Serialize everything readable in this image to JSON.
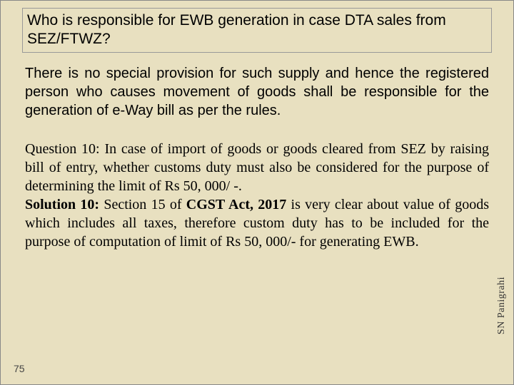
{
  "colors": {
    "background": "#e8e0c0",
    "text": "#000000",
    "border": "#999999",
    "page_num": "#444444",
    "author": "#333333"
  },
  "typography": {
    "title_fontsize": 21,
    "body_fontsize": 20,
    "pagenum_fontsize": 14,
    "author_fontsize": 14,
    "title_font": "Arial",
    "answer1_font": "Arial",
    "qa2_font": "Georgia"
  },
  "title": "Who is responsible for EWB generation in case DTA sales from SEZ/FTWZ?",
  "answer1": "There is no special provision for such supply and hence the registered person who causes movement of goods shall be responsible for the generation of e-Way bill as per the rules.",
  "qa2": {
    "question": "Question 10: In case of import of goods or goods cleared from SEZ by raising bill of entry, whether customs duty must also be considered for the purpose of determining the limit of Rs 50, 000/ -.",
    "solution_label": "Solution 10:",
    "solution_mid": " Section 15 of ",
    "solution_act": "CGST Act, 2017",
    "solution_tail": " is very clear about value of goods which includes all taxes, therefore custom duty has to be included for the purpose of computation of limit of Rs 50, 000/- for generating EWB."
  },
  "page_number": "75",
  "author": "SN Panigrahi"
}
